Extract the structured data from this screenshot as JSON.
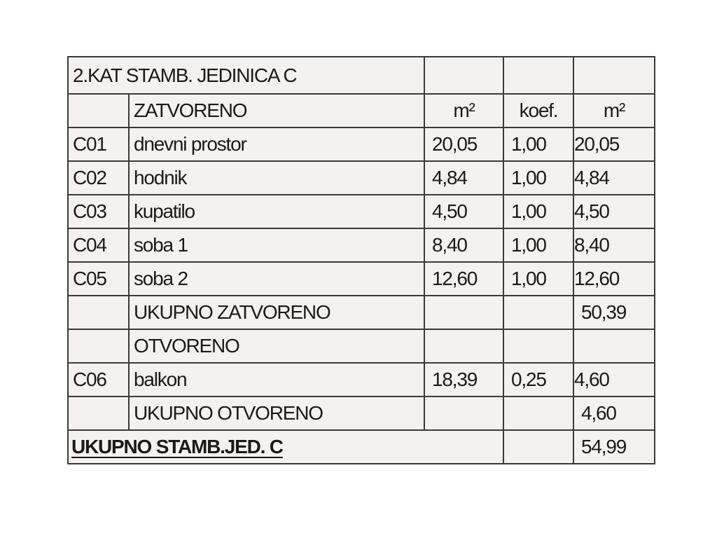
{
  "title": "2.KAT STAMB. JEDINICA C",
  "headers": {
    "closed": "ZATVORENO",
    "area": "m²",
    "coef": "koef.",
    "area_result": "m²"
  },
  "closed_rows": [
    {
      "code": "C01",
      "name": "dnevni prostor",
      "area": "20,05",
      "coef": "1,00",
      "result": "20,05"
    },
    {
      "code": "C02",
      "name": "hodnik",
      "area": "4,84",
      "coef": "1,00",
      "result": "4,84"
    },
    {
      "code": "C03",
      "name": "kupatilo",
      "area": "4,50",
      "coef": "1,00",
      "result": "4,50"
    },
    {
      "code": "C04",
      "name": "soba 1",
      "area": "8,40",
      "coef": "1,00",
      "result": "8,40"
    },
    {
      "code": "C05",
      "name": "soba 2",
      "area": "12,60",
      "coef": "1,00",
      "result": "12,60"
    }
  ],
  "closed_total": {
    "label": "UKUPNO ZATVORENO",
    "value": "50,39"
  },
  "open_header": "OTVORENO",
  "open_rows": [
    {
      "code": "C06",
      "name": "balkon",
      "area": "18,39",
      "coef": "0,25",
      "result": "4,60"
    }
  ],
  "open_total": {
    "label": "UKUPNO OTVORENO",
    "value": "4,60"
  },
  "grand_total": {
    "label": "UKUPNO STAMB.JED. C",
    "value": "54,99"
  }
}
